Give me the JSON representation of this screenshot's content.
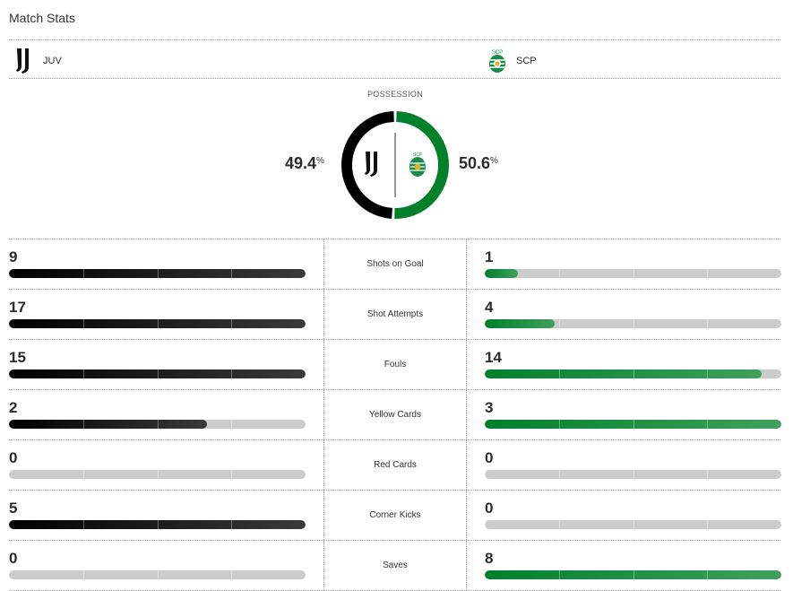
{
  "title": "Match Stats",
  "home": {
    "abbr": "JUV",
    "logo": "juventus-logo",
    "color": "#000000"
  },
  "away": {
    "abbr": "SCP",
    "logo": "sporting-cp-logo",
    "color": "#00802b"
  },
  "possession": {
    "label": "POSSESSION",
    "home": 49.4,
    "away": 50.6,
    "home_text": "49.4",
    "away_text": "50.6",
    "unit": "%"
  },
  "stats": [
    {
      "label": "Shots on Goal",
      "home": 9,
      "away": 1
    },
    {
      "label": "Shot Attempts",
      "home": 17,
      "away": 4
    },
    {
      "label": "Fouls",
      "home": 15,
      "away": 14
    },
    {
      "label": "Yellow Cards",
      "home": 2,
      "away": 3
    },
    {
      "label": "Red Cards",
      "home": 0,
      "away": 0
    },
    {
      "label": "Corner Kicks",
      "home": 5,
      "away": 0
    },
    {
      "label": "Saves",
      "home": 0,
      "away": 8
    }
  ]
}
